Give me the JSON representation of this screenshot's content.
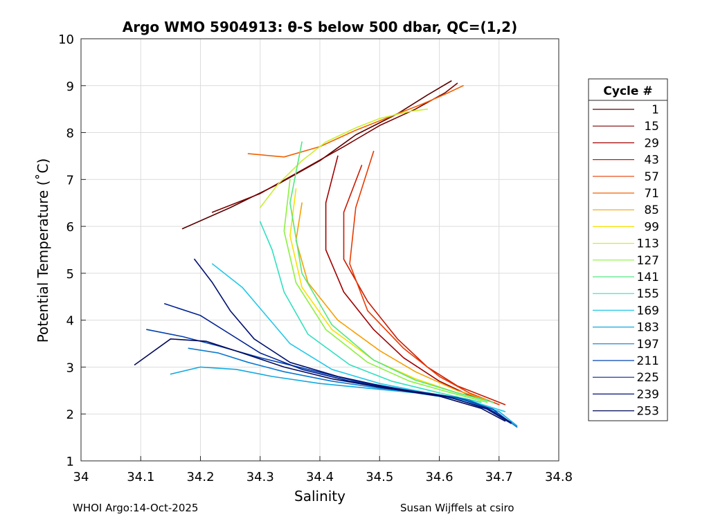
{
  "chart_data": {
    "type": "line",
    "title": "Argo WMO 5904913: θ-S below 500 dbar,  QC=(1,2)",
    "xlabel": "Salinity",
    "ylabel": "Potential Temperature (˚C)",
    "xlim": [
      34.0,
      34.8
    ],
    "ylim": [
      1,
      10
    ],
    "xticks": [
      "34",
      "34.1",
      "34.2",
      "34.3",
      "34.4",
      "34.5",
      "34.6",
      "34.7",
      "34.8"
    ],
    "yticks": [
      "1",
      "2",
      "3",
      "4",
      "5",
      "6",
      "7",
      "8",
      "9",
      "10"
    ],
    "grid": true,
    "legend": {
      "title": "Cycle #",
      "placement": "right outside",
      "entries": [
        "1",
        "15",
        "29",
        "43",
        "57",
        "71",
        "85",
        "99",
        "113",
        "127",
        "141",
        "155",
        "169",
        "183",
        "197",
        "211",
        "225",
        "239",
        "253"
      ],
      "colors": [
        "#5a0000",
        "#7a0000",
        "#a00000",
        "#c81a00",
        "#e83a00",
        "#f06000",
        "#f6a000",
        "#f8e000",
        "#c8f030",
        "#8cf040",
        "#50e880",
        "#30e0c0",
        "#20c8e8",
        "#10a8e0",
        "#0878d0",
        "#0040b0",
        "#002090",
        "#001070",
        "#000858"
      ]
    },
    "series": [
      {
        "name": "1",
        "x": [
          34.17,
          34.25,
          34.33,
          34.4,
          34.46,
          34.53,
          34.58,
          34.62
        ],
        "y": [
          5.95,
          6.4,
          6.9,
          7.4,
          7.95,
          8.4,
          8.8,
          9.1
        ]
      },
      {
        "name": "15",
        "x": [
          34.22,
          34.3,
          34.37,
          34.44,
          34.5,
          34.56,
          34.61,
          34.63
        ],
        "y": [
          6.3,
          6.7,
          7.2,
          7.7,
          8.15,
          8.5,
          8.85,
          9.05
        ]
      },
      {
        "name": "29",
        "x": [
          34.43,
          34.41,
          34.41,
          34.44,
          34.49,
          34.54,
          34.6,
          34.65,
          34.69
        ],
        "y": [
          7.5,
          6.5,
          5.5,
          4.6,
          3.8,
          3.2,
          2.7,
          2.4,
          2.25
        ]
      },
      {
        "name": "43",
        "x": [
          34.47,
          34.44,
          34.44,
          34.48,
          34.53,
          34.58,
          34.63,
          34.68,
          34.71
        ],
        "y": [
          7.3,
          6.3,
          5.3,
          4.4,
          3.6,
          3.0,
          2.6,
          2.35,
          2.2
        ]
      },
      {
        "name": "57",
        "x": [
          34.49,
          34.46,
          34.45,
          34.48,
          34.54,
          34.6,
          34.65,
          34.7
        ],
        "y": [
          7.6,
          6.4,
          5.2,
          4.2,
          3.4,
          2.8,
          2.45,
          2.2
        ]
      },
      {
        "name": "71",
        "x": [
          34.28,
          34.34,
          34.4,
          34.46,
          34.52,
          34.57,
          34.61,
          34.64
        ],
        "y": [
          7.55,
          7.48,
          7.7,
          8.05,
          8.35,
          8.6,
          8.82,
          9.0
        ]
      },
      {
        "name": "85",
        "x": [
          34.37,
          34.36,
          34.38,
          34.43,
          34.5,
          34.56,
          34.63,
          34.68
        ],
        "y": [
          6.5,
          5.7,
          4.8,
          4.0,
          3.35,
          2.9,
          2.5,
          2.3
        ]
      },
      {
        "name": "99",
        "x": [
          34.36,
          34.35,
          34.37,
          34.42,
          34.49,
          34.56,
          34.63,
          34.69
        ],
        "y": [
          6.8,
          5.8,
          4.7,
          3.8,
          3.15,
          2.75,
          2.45,
          2.25
        ]
      },
      {
        "name": "113",
        "x": [
          34.3,
          34.33,
          34.37,
          34.41,
          34.46,
          34.5,
          34.55,
          34.58
        ],
        "y": [
          6.4,
          6.9,
          7.4,
          7.8,
          8.1,
          8.3,
          8.45,
          8.5
        ]
      },
      {
        "name": "127",
        "x": [
          34.35,
          34.34,
          34.36,
          34.41,
          34.48,
          34.55,
          34.62,
          34.68
        ],
        "y": [
          7.0,
          5.9,
          4.8,
          3.8,
          3.1,
          2.7,
          2.45,
          2.25
        ]
      },
      {
        "name": "141",
        "x": [
          34.37,
          34.35,
          34.37,
          34.42,
          34.49,
          34.56,
          34.63,
          34.69
        ],
        "y": [
          7.8,
          6.5,
          5.0,
          3.9,
          3.15,
          2.72,
          2.45,
          2.25
        ]
      },
      {
        "name": "155",
        "x": [
          34.3,
          34.32,
          34.34,
          34.38,
          34.45,
          34.52,
          34.6,
          34.67
        ],
        "y": [
          6.1,
          5.5,
          4.6,
          3.7,
          3.05,
          2.7,
          2.45,
          2.25
        ]
      },
      {
        "name": "169",
        "x": [
          34.22,
          34.27,
          34.31,
          34.35,
          34.42,
          34.5,
          34.58,
          34.66,
          34.71
        ],
        "y": [
          5.2,
          4.7,
          4.1,
          3.5,
          2.95,
          2.65,
          2.45,
          2.25,
          2.05
        ]
      },
      {
        "name": "183",
        "x": [
          34.15,
          34.2,
          34.26,
          34.32,
          34.4,
          34.48,
          34.56,
          34.64,
          34.7,
          34.73
        ],
        "y": [
          2.85,
          3.0,
          2.95,
          2.8,
          2.65,
          2.55,
          2.45,
          2.3,
          2.05,
          1.75
        ]
      },
      {
        "name": "197",
        "x": [
          34.18,
          34.23,
          34.28,
          34.34,
          34.42,
          34.5,
          34.58,
          34.65,
          34.7,
          34.73
        ],
        "y": [
          3.4,
          3.3,
          3.1,
          2.9,
          2.7,
          2.55,
          2.45,
          2.3,
          2.0,
          1.72
        ]
      },
      {
        "name": "211",
        "x": [
          34.11,
          34.17,
          34.23,
          34.3,
          34.38,
          34.46,
          34.55,
          34.63,
          34.69,
          34.72
        ],
        "y": [
          3.8,
          3.65,
          3.45,
          3.2,
          2.95,
          2.7,
          2.5,
          2.35,
          2.1,
          1.8
        ]
      },
      {
        "name": "225",
        "x": [
          34.14,
          34.2,
          34.25,
          34.3,
          34.37,
          34.45,
          34.54,
          34.62,
          34.68,
          34.72
        ],
        "y": [
          4.35,
          4.1,
          3.7,
          3.3,
          2.95,
          2.7,
          2.5,
          2.35,
          2.1,
          1.8
        ]
      },
      {
        "name": "239",
        "x": [
          34.19,
          34.22,
          34.25,
          34.29,
          34.35,
          34.43,
          34.52,
          34.61,
          34.68,
          34.72
        ],
        "y": [
          5.3,
          4.8,
          4.2,
          3.6,
          3.1,
          2.8,
          2.55,
          2.38,
          2.12,
          1.82
        ]
      },
      {
        "name": "253",
        "x": [
          34.09,
          34.15,
          34.21,
          34.27,
          34.34,
          34.42,
          34.51,
          34.6,
          34.67,
          34.71
        ],
        "y": [
          3.05,
          3.6,
          3.55,
          3.3,
          3.0,
          2.75,
          2.55,
          2.38,
          2.12,
          1.85
        ]
      }
    ]
  },
  "footer": {
    "left": "WHOI Argo:14-Oct-2025",
    "right": "Susan Wijffels at csiro"
  }
}
